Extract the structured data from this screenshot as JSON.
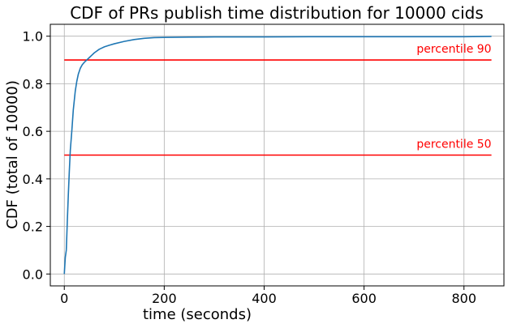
{
  "chart_data": {
    "type": "line",
    "title": "CDF of PRs publish time distribution for 10000 cids",
    "xlabel": "time (seconds)",
    "ylabel": "CDF (total of 10000)",
    "xlim": [
      -28,
      880
    ],
    "ylim": [
      -0.05,
      1.05
    ],
    "xticks": [
      0,
      200,
      400,
      600,
      800
    ],
    "yticks": [
      0.0,
      0.2,
      0.4,
      0.6,
      0.8,
      1.0
    ],
    "xtick_labels": [
      "0",
      "200",
      "400",
      "600",
      "800"
    ],
    "ytick_labels": [
      "0.0",
      "0.2",
      "0.4",
      "0.6",
      "0.8",
      "1.0"
    ],
    "grid": true,
    "series": [
      {
        "color": "#1f77b4",
        "x": [
          0,
          2,
          4,
          6,
          8,
          10,
          12,
          15,
          18,
          20,
          22,
          25,
          28,
          32,
          36,
          40,
          45,
          50,
          55,
          60,
          70,
          80,
          90,
          100,
          120,
          140,
          160,
          180,
          200,
          250,
          300,
          400,
          500,
          600,
          700,
          800,
          855
        ],
        "y": [
          0.0,
          0.07,
          0.1,
          0.22,
          0.33,
          0.43,
          0.52,
          0.6,
          0.69,
          0.73,
          0.77,
          0.81,
          0.84,
          0.865,
          0.88,
          0.89,
          0.9,
          0.91,
          0.92,
          0.93,
          0.945,
          0.955,
          0.962,
          0.968,
          0.978,
          0.986,
          0.991,
          0.994,
          0.995,
          0.996,
          0.997,
          0.997,
          0.998,
          0.998,
          0.998,
          0.998,
          0.999
        ]
      }
    ],
    "hlines": [
      {
        "y": 0.9,
        "x_start": 0,
        "x_end": 855,
        "color": "#ff0000",
        "label": "percentile 90"
      },
      {
        "y": 0.5,
        "x_start": 0,
        "x_end": 855,
        "color": "#ff0000",
        "label": "percentile 50"
      }
    ]
  }
}
